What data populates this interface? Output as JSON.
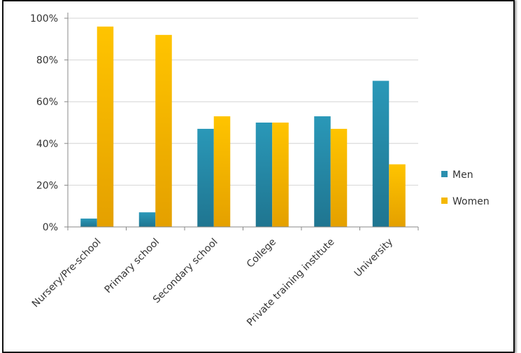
{
  "chart_data": {
    "type": "bar",
    "title": "",
    "xlabel": "",
    "ylabel": "",
    "categories": [
      "Nursery/Pre-school",
      "Primary school",
      "Secondary school",
      "College",
      "Private training institute",
      "University"
    ],
    "series": [
      {
        "name": "Men",
        "color": "#2a8fae",
        "values": [
          4,
          7,
          47,
          50,
          53,
          70
        ]
      },
      {
        "name": "Women",
        "color": "#f5b800",
        "values": [
          96,
          92,
          53,
          50,
          47,
          30
        ]
      }
    ],
    "ylim": [
      0,
      100
    ],
    "yticks": [
      "0%",
      "20%",
      "40%",
      "60%",
      "80%",
      "100%"
    ],
    "grid": true,
    "legend_position": "right"
  }
}
